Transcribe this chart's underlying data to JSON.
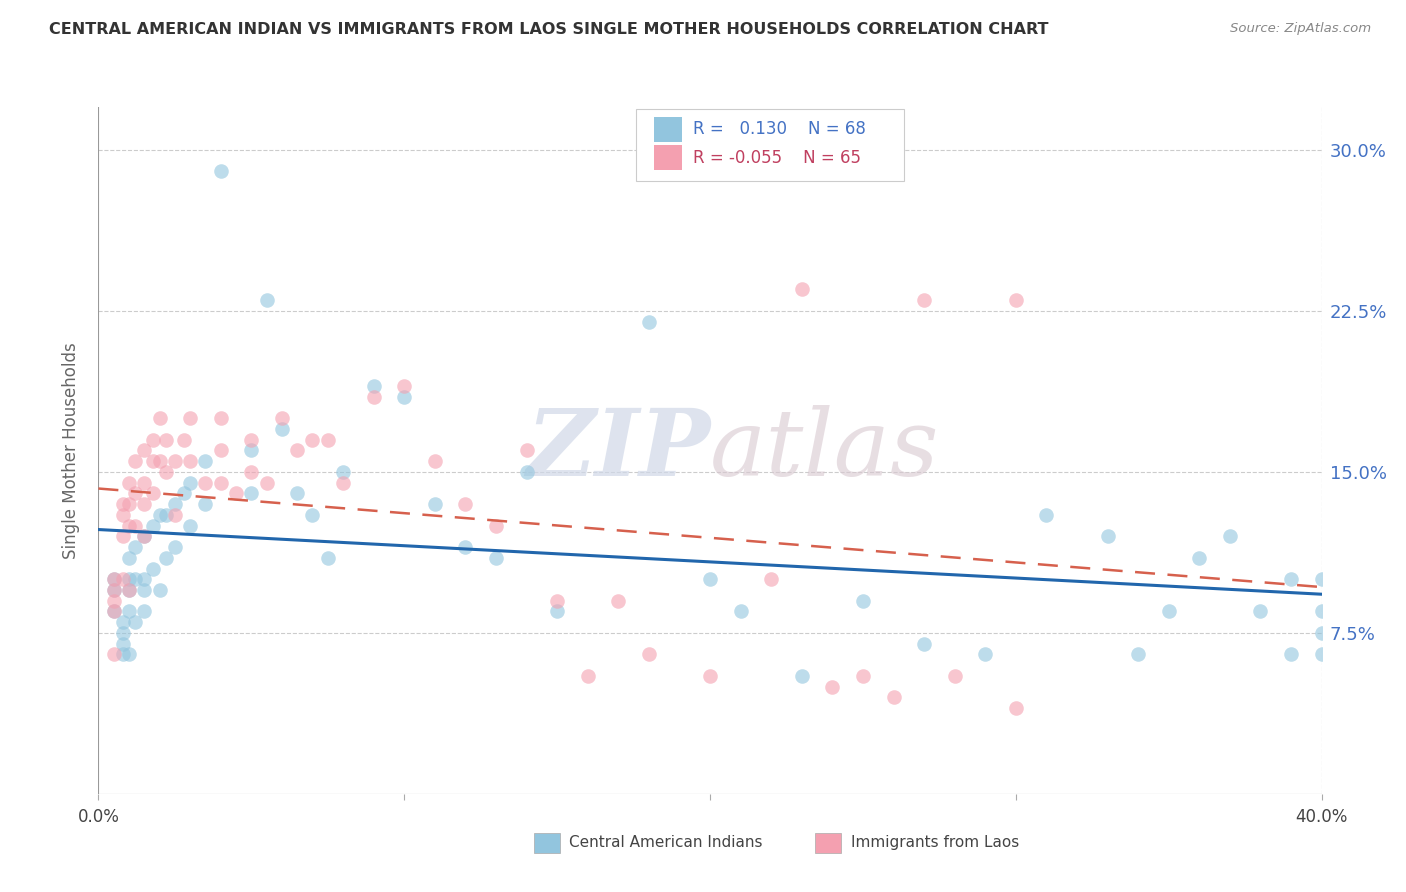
{
  "title": "CENTRAL AMERICAN INDIAN VS IMMIGRANTS FROM LAOS SINGLE MOTHER HOUSEHOLDS CORRELATION CHART",
  "source": "Source: ZipAtlas.com",
  "ylabel": "Single Mother Households",
  "ytick_labels": [
    "7.5%",
    "15.0%",
    "22.5%",
    "30.0%"
  ],
  "ytick_values": [
    0.075,
    0.15,
    0.225,
    0.3
  ],
  "xlim": [
    0.0,
    0.4
  ],
  "ylim": [
    0.0,
    0.32
  ],
  "color_blue": "#92c5de",
  "color_blue_line": "#2166ac",
  "color_pink": "#f4a0b0",
  "color_pink_line": "#d6604d",
  "watermark_zip": "ZIP",
  "watermark_atlas": "atlas",
  "blue_label": "Central American Indians",
  "pink_label": "Immigrants from Laos",
  "blue_R": "0.130",
  "blue_N": "68",
  "pink_R": "-0.055",
  "pink_N": "65",
  "blue_x": [
    0.005,
    0.005,
    0.005,
    0.008,
    0.008,
    0.008,
    0.008,
    0.01,
    0.01,
    0.01,
    0.01,
    0.01,
    0.012,
    0.012,
    0.012,
    0.015,
    0.015,
    0.015,
    0.015,
    0.018,
    0.018,
    0.02,
    0.02,
    0.022,
    0.022,
    0.025,
    0.025,
    0.028,
    0.03,
    0.03,
    0.035,
    0.035,
    0.04,
    0.05,
    0.05,
    0.055,
    0.06,
    0.065,
    0.07,
    0.075,
    0.08,
    0.09,
    0.1,
    0.11,
    0.12,
    0.13,
    0.14,
    0.15,
    0.18,
    0.2,
    0.21,
    0.23,
    0.25,
    0.27,
    0.29,
    0.31,
    0.33,
    0.34,
    0.35,
    0.36,
    0.37,
    0.38,
    0.39,
    0.39,
    0.4,
    0.4,
    0.4,
    0.4
  ],
  "blue_y": [
    0.1,
    0.095,
    0.085,
    0.08,
    0.075,
    0.07,
    0.065,
    0.11,
    0.1,
    0.095,
    0.085,
    0.065,
    0.115,
    0.1,
    0.08,
    0.12,
    0.1,
    0.095,
    0.085,
    0.125,
    0.105,
    0.13,
    0.095,
    0.13,
    0.11,
    0.135,
    0.115,
    0.14,
    0.145,
    0.125,
    0.155,
    0.135,
    0.29,
    0.16,
    0.14,
    0.23,
    0.17,
    0.14,
    0.13,
    0.11,
    0.15,
    0.19,
    0.185,
    0.135,
    0.115,
    0.11,
    0.15,
    0.085,
    0.22,
    0.1,
    0.085,
    0.055,
    0.09,
    0.07,
    0.065,
    0.13,
    0.12,
    0.065,
    0.085,
    0.11,
    0.12,
    0.085,
    0.065,
    0.1,
    0.1,
    0.085,
    0.075,
    0.065
  ],
  "pink_x": [
    0.005,
    0.005,
    0.005,
    0.005,
    0.005,
    0.008,
    0.008,
    0.008,
    0.008,
    0.01,
    0.01,
    0.01,
    0.01,
    0.012,
    0.012,
    0.012,
    0.015,
    0.015,
    0.015,
    0.015,
    0.018,
    0.018,
    0.018,
    0.02,
    0.02,
    0.022,
    0.022,
    0.025,
    0.025,
    0.028,
    0.03,
    0.03,
    0.035,
    0.04,
    0.04,
    0.04,
    0.045,
    0.05,
    0.05,
    0.055,
    0.06,
    0.065,
    0.07,
    0.075,
    0.08,
    0.09,
    0.1,
    0.11,
    0.12,
    0.13,
    0.14,
    0.15,
    0.16,
    0.17,
    0.18,
    0.2,
    0.22,
    0.23,
    0.24,
    0.25,
    0.26,
    0.27,
    0.28,
    0.3,
    0.3
  ],
  "pink_y": [
    0.1,
    0.095,
    0.09,
    0.085,
    0.065,
    0.135,
    0.13,
    0.12,
    0.1,
    0.145,
    0.135,
    0.125,
    0.095,
    0.155,
    0.14,
    0.125,
    0.16,
    0.145,
    0.135,
    0.12,
    0.165,
    0.155,
    0.14,
    0.175,
    0.155,
    0.165,
    0.15,
    0.155,
    0.13,
    0.165,
    0.175,
    0.155,
    0.145,
    0.175,
    0.16,
    0.145,
    0.14,
    0.165,
    0.15,
    0.145,
    0.175,
    0.16,
    0.165,
    0.165,
    0.145,
    0.185,
    0.19,
    0.155,
    0.135,
    0.125,
    0.16,
    0.09,
    0.055,
    0.09,
    0.065,
    0.055,
    0.1,
    0.235,
    0.05,
    0.055,
    0.045,
    0.23,
    0.055,
    0.04,
    0.23
  ]
}
